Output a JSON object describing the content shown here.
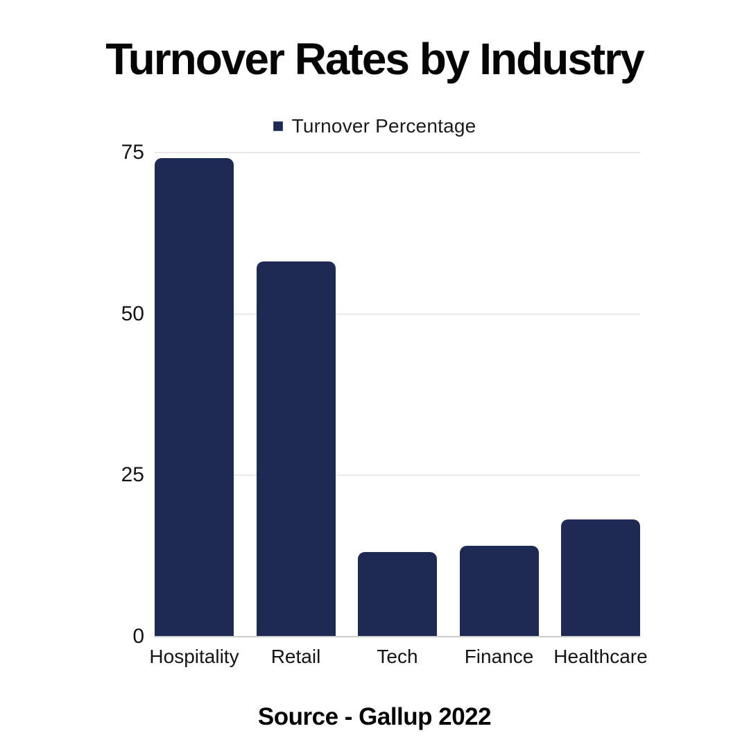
{
  "page": {
    "background_color": "#ffffff"
  },
  "chart_data": {
    "type": "bar",
    "title": "Turnover Rates by Industry",
    "legend": [
      "Turnover Percentage"
    ],
    "legend_position": "top-center",
    "categories": [
      "Hospitality",
      "Retail",
      "Tech",
      "Finance",
      "Healthcare"
    ],
    "values": [
      74,
      58,
      13,
      14,
      18
    ],
    "xlabel": "",
    "ylabel": "",
    "yticks": [
      0,
      25,
      50,
      75
    ],
    "ylim": [
      0,
      75
    ],
    "grid": "horizontal-only",
    "source": "Source - Gallup 2022",
    "bar_color": "#1f2a54",
    "legend_swatch_color": "#1f2a54",
    "gridline_color": "#e9e9e9",
    "baseline_color": "#cdcdcd",
    "title_color": "#050505",
    "axis_text_color": "#141414"
  }
}
